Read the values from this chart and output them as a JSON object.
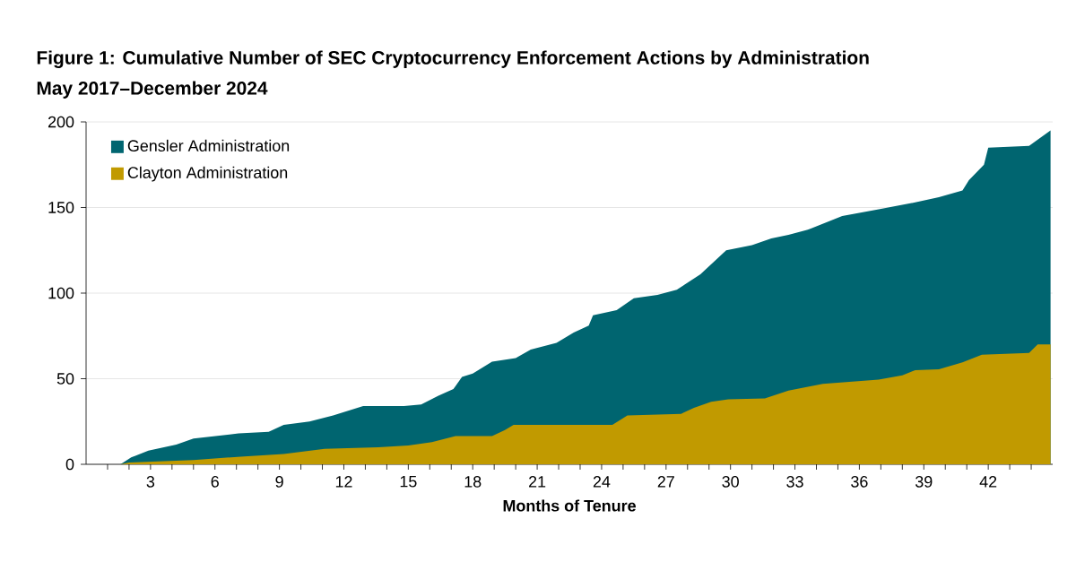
{
  "chart_data": {
    "type": "area",
    "title": "Figure 1: Cumulative Number of SEC Cryptocurrency Enforcement Actions by Administration",
    "subtitle": "May 2017–December 2024",
    "xlabel": "Months of Tenure",
    "xlim": [
      0,
      45
    ],
    "ylim": [
      0,
      200
    ],
    "yticks": [
      0,
      50,
      100,
      150,
      200
    ],
    "xticks": [
      {
        "value": 1,
        "label": null
      },
      {
        "value": 2,
        "label": null
      },
      3,
      {
        "value": 4,
        "label": null
      },
      {
        "value": 5,
        "label": null
      },
      6,
      {
        "value": 7,
        "label": null
      },
      {
        "value": 8,
        "label": null
      },
      9,
      {
        "value": 10,
        "label": null
      },
      {
        "value": 11,
        "label": null
      },
      12,
      {
        "value": 13,
        "label": null
      },
      {
        "value": 14,
        "label": null
      },
      15,
      {
        "value": 16,
        "label": null
      },
      {
        "value": 17,
        "label": null
      },
      18,
      {
        "value": 19,
        "label": null
      },
      {
        "value": 20,
        "label": null
      },
      21,
      {
        "value": 22,
        "label": null
      },
      {
        "value": 23,
        "label": null
      },
      24,
      {
        "value": 25,
        "label": null
      },
      {
        "value": 26,
        "label": null
      },
      27,
      {
        "value": 28,
        "label": null
      },
      {
        "value": 29,
        "label": null
      },
      30,
      {
        "value": 31,
        "label": null
      },
      {
        "value": 32,
        "label": null
      },
      33,
      {
        "value": 34,
        "label": null
      },
      {
        "value": 35,
        "label": null
      },
      36,
      {
        "value": 37,
        "label": null
      },
      {
        "value": 38,
        "label": null
      },
      39,
      {
        "value": 40,
        "label": null
      },
      {
        "value": 41,
        "label": null
      },
      42,
      {
        "value": 43,
        "label": null
      },
      {
        "value": 44,
        "label": null
      }
    ],
    "grid": "y",
    "legend": "top left",
    "series": [
      {
        "name": "Gensler Administration",
        "color": "#006570",
        "x": [
          1.6,
          2.1,
          2.9,
          4.2,
          5.0,
          7.1,
          8.5,
          9.2,
          10.4,
          11.5,
          12.9,
          14.8,
          15.6,
          16.4,
          17.1,
          17.5,
          18.0,
          18.9,
          20.0,
          20.7,
          21.9,
          22.7,
          23.4,
          23.6,
          24.7,
          25.5,
          26.6,
          27.5,
          28.6,
          29.8,
          31.0,
          31.9,
          32.7,
          33.6,
          35.2,
          36.9,
          38.6,
          39.7,
          40.8,
          41.1,
          41.8,
          42.0,
          43.9,
          44.9
        ],
        "values": [
          0,
          4,
          8,
          11.5,
          15,
          18,
          19,
          23,
          25,
          28.5,
          34,
          34,
          35,
          40,
          44,
          51,
          53,
          60,
          62,
          67,
          71,
          77,
          81,
          87,
          90,
          97,
          99,
          102,
          111,
          125,
          128,
          132,
          134,
          137,
          145,
          149,
          153,
          156,
          160,
          166,
          175,
          185,
          186,
          195
        ]
      },
      {
        "name": "Clayton Administration",
        "color": "#c19a00",
        "x": [
          1.6,
          2.0,
          5.0,
          7.2,
          9.2,
          11.1,
          13.6,
          15.0,
          16.1,
          17.2,
          18.9,
          19.5,
          19.9,
          24.5,
          25.2,
          27.7,
          28.3,
          29.1,
          29.9,
          31.6,
          32.7,
          34.3,
          36.9,
          38.0,
          38.6,
          39.7,
          40.8,
          41.7,
          43.9,
          44.3,
          44.9
        ],
        "values": [
          0,
          1,
          2.5,
          4.5,
          6,
          9,
          10,
          11,
          13,
          16.5,
          16.5,
          20,
          23,
          23,
          28.5,
          29.5,
          33,
          36.5,
          38,
          38.5,
          43,
          47,
          49.5,
          52,
          55,
          55.5,
          59.5,
          64,
          65,
          70,
          70
        ]
      }
    ]
  }
}
